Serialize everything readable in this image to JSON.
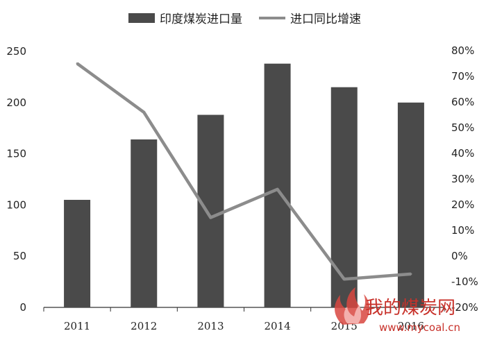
{
  "chart_data": {
    "type": "bar+line",
    "categories": [
      "2011",
      "2012",
      "2013",
      "2014",
      "2015",
      "2016"
    ],
    "series": [
      {
        "name": "印度煤炭进口量",
        "type": "bar",
        "axis": "left",
        "values": [
          105,
          164,
          188,
          238,
          215,
          200
        ],
        "color": "#4a4a4a"
      },
      {
        "name": "进口同比增速",
        "type": "line",
        "axis": "right",
        "values": [
          75,
          56,
          15,
          26,
          -9,
          -7
        ],
        "color": "#8c8c8c"
      }
    ],
    "y_left": {
      "ylim": [
        0,
        250
      ],
      "ticks": [
        "0",
        "50",
        "100",
        "150",
        "200",
        "250"
      ]
    },
    "y_right": {
      "ylim": [
        -20,
        80
      ],
      "ticks": [
        "-20%",
        "-10%",
        "0%",
        "10%",
        "20%",
        "30%",
        "40%",
        "50%",
        "60%",
        "70%",
        "80%"
      ]
    },
    "legend_position": "top-center",
    "grid": false
  },
  "watermark": {
    "name": "我的煤炭网",
    "url": "www.mycoal.cn"
  }
}
